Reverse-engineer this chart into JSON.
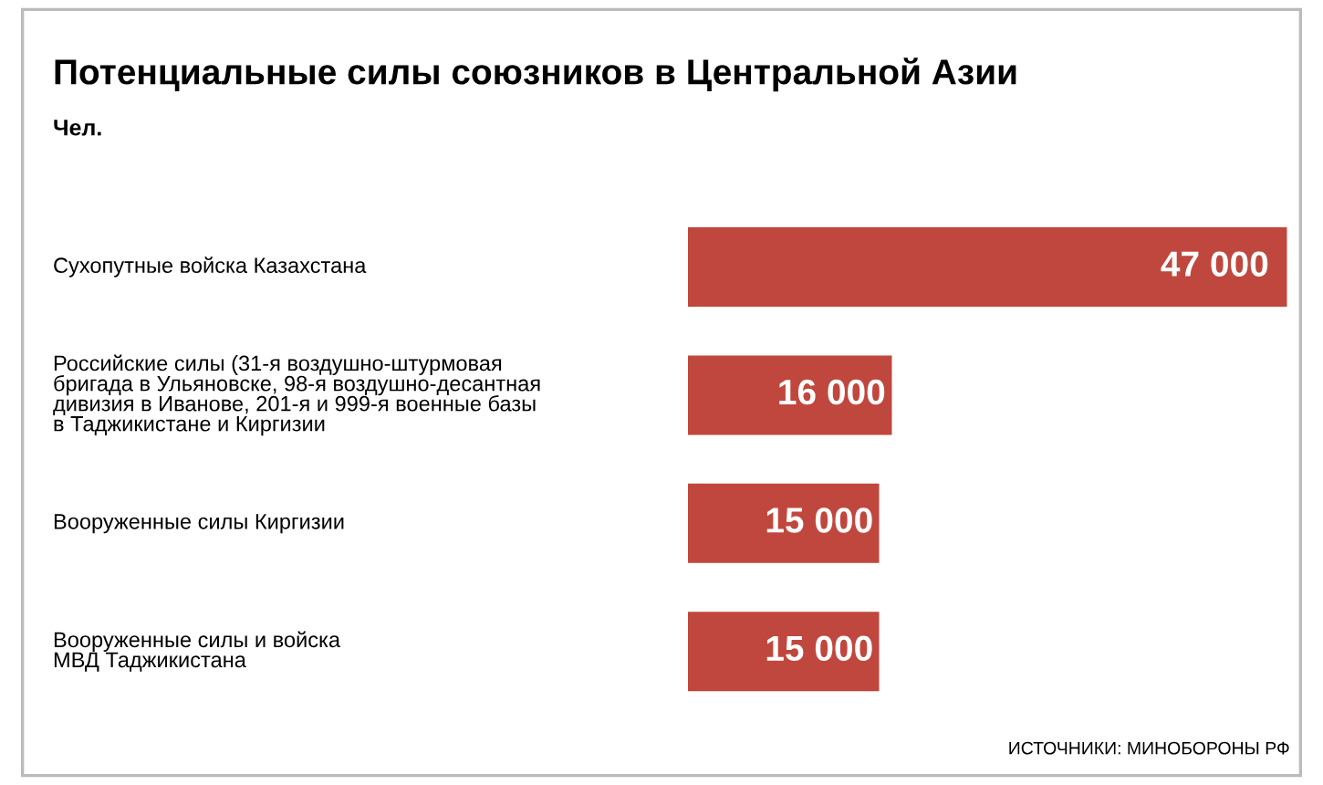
{
  "chart_data": {
    "type": "bar",
    "orientation": "horizontal",
    "title": "Потенциальные силы союзников в Центральной Азии",
    "subtitle": "Чел.",
    "categories": [
      "Сухопутные войска Казахстана",
      "Российские силы (31-я воздушно-штурмовая\nбригада в Ульяновске, 98-я воздушно-десантная\nдивизия в Иванове, 201-я и 999-я военные базы\nв Таджикистане и Киргизии",
      "Вооруженные силы Киргизии",
      "Вооруженные силы и войска\nМВД Таджикистана"
    ],
    "values": [
      47000,
      16000,
      15000,
      15000
    ],
    "value_labels": [
      "47 000",
      "16 000",
      "15 000",
      "15 000"
    ],
    "color": "#c0473d",
    "annotations": [
      "ИСТОЧНИКИ: МИНОБОРОНЫ РФ"
    ]
  }
}
